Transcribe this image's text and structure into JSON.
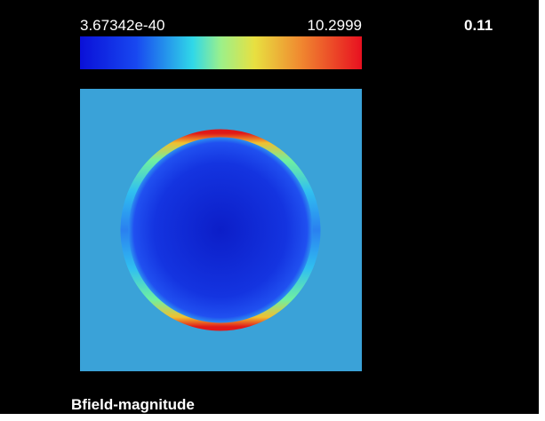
{
  "colorbar": {
    "min_label": "3.67342e-40",
    "max_label": "10.2999"
  },
  "time_label": "0.11",
  "field_label": "Bfield-magnitude"
}
